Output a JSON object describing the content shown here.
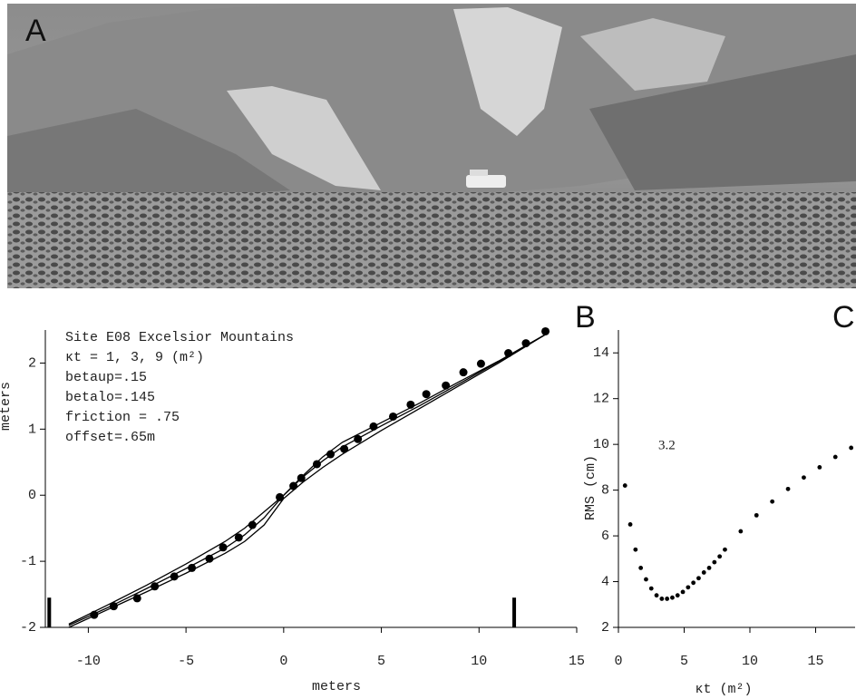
{
  "panel_labels": [
    "A",
    "B",
    "C"
  ],
  "chart_data": [
    {
      "type": "profile",
      "ylabel": "meters",
      "xlabel": "meters",
      "annotations": [
        "Site E08 Excelsior Mountains",
        "κt = 1, 3, 9 (m²)",
        "betaup=.15",
        "betalo=.145",
        "friction = .75",
        "offset=.65m"
      ],
      "xlim": [
        -12.2,
        15
      ],
      "ylim": [
        -2,
        2.5
      ],
      "xticks": [
        -10,
        -5,
        0,
        5,
        10,
        15
      ],
      "yticks": [
        -2,
        -1,
        0,
        1,
        2
      ],
      "color": "#000000",
      "bounds_x": [
        -12,
        11.8
      ],
      "bounds_height": [
        -2,
        -1.55
      ],
      "observed": {
        "x": [
          -9.7,
          -8.7,
          -7.5,
          -6.6,
          -5.6,
          -4.7,
          -3.8,
          -3.1,
          -2.3,
          -1.6,
          -0.2,
          0.5,
          0.9,
          1.7,
          2.4,
          3.1,
          3.8,
          4.6,
          5.6,
          6.5,
          7.3,
          8.3,
          9.2,
          10.1,
          11.5,
          12.4,
          13.4
        ],
        "y": [
          -1.81,
          -1.68,
          -1.56,
          -1.38,
          -1.23,
          -1.1,
          -0.96,
          -0.79,
          -0.64,
          -0.45,
          -0.03,
          0.14,
          0.26,
          0.47,
          0.62,
          0.7,
          0.85,
          1.04,
          1.19,
          1.37,
          1.53,
          1.66,
          1.86,
          1.99,
          2.15,
          2.3,
          2.48
        ]
      },
      "x": [
        -11,
        -9,
        -7,
        -5,
        -3,
        -2,
        -1,
        0,
        1,
        2,
        3,
        5,
        7,
        9,
        11,
        13.5
      ],
      "series": [
        {
          "values": [
            -1.95,
            -1.66,
            -1.36,
            -1.04,
            -0.7,
            -0.5,
            -0.25,
            0.0,
            0.3,
            0.58,
            0.8,
            1.1,
            1.4,
            1.72,
            2.03,
            2.45
          ]
        },
        {
          "values": [
            -1.97,
            -1.7,
            -1.41,
            -1.11,
            -0.8,
            -0.6,
            -0.34,
            0.0,
            0.28,
            0.52,
            0.73,
            1.05,
            1.36,
            1.69,
            2.02,
            2.45
          ]
        },
        {
          "values": [
            -2.0,
            -1.73,
            -1.46,
            -1.18,
            -0.88,
            -0.7,
            -0.45,
            -0.05,
            0.2,
            0.42,
            0.62,
            0.98,
            1.32,
            1.66,
            2.0,
            2.45
          ]
        }
      ]
    },
    {
      "type": "scatter",
      "ylabel": "RMS (cm)",
      "xlabel": "κt (m²)",
      "annotation": "3.2",
      "xlim": [
        0,
        18
      ],
      "ylim": [
        2,
        15
      ],
      "xticks": [
        0,
        5,
        10,
        15
      ],
      "yticks": [
        2,
        4,
        6,
        8,
        10,
        12,
        14
      ],
      "color": "#000000",
      "x": [
        0.5,
        0.9,
        1.3,
        1.7,
        2.1,
        2.5,
        2.9,
        3.3,
        3.7,
        4.1,
        4.5,
        4.9,
        5.3,
        5.7,
        6.1,
        6.5,
        6.9,
        7.3,
        7.7,
        8.1,
        9.3,
        10.5,
        11.7,
        12.9,
        14.1,
        15.3,
        16.5,
        17.7
      ],
      "values": [
        8.2,
        6.5,
        5.4,
        4.6,
        4.1,
        3.7,
        3.4,
        3.25,
        3.25,
        3.3,
        3.4,
        3.55,
        3.75,
        3.95,
        4.15,
        4.4,
        4.6,
        4.85,
        5.1,
        5.4,
        6.2,
        6.9,
        7.5,
        8.05,
        8.55,
        9.0,
        9.45,
        9.85
      ]
    }
  ]
}
